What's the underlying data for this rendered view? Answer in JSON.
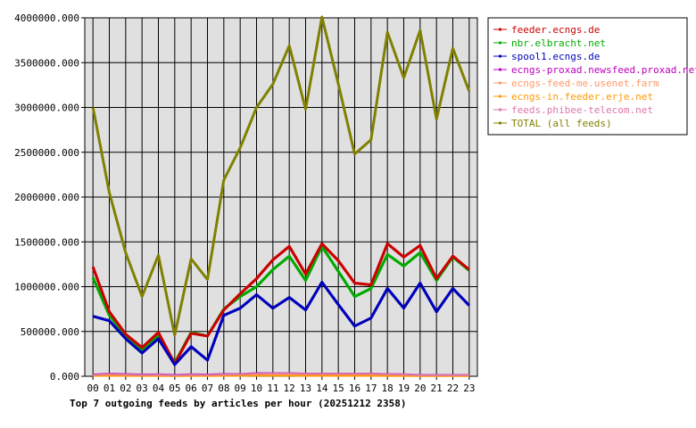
{
  "chart_data": {
    "type": "line",
    "title": "Top 7 outgoing feeds by articles per hour (20251212 2358)",
    "categories": [
      "00",
      "01",
      "02",
      "03",
      "04",
      "05",
      "06",
      "07",
      "08",
      "09",
      "10",
      "11",
      "12",
      "13",
      "14",
      "15",
      "16",
      "17",
      "18",
      "19",
      "20",
      "21",
      "22",
      "23"
    ],
    "y_tick_labels": [
      "0.000",
      "500000.000",
      "1000000.000",
      "1500000.000",
      "2000000.000",
      "2500000.000",
      "3000000.000",
      "3500000.000",
      "4000000.000"
    ],
    "ylim": [
      0,
      4000000
    ],
    "grid": true,
    "legend_position": "right",
    "plot_background": "#e0e0e0",
    "series": [
      {
        "name": "feeder.ecngs.de",
        "color": "#cc0000",
        "values": [
          1220000,
          720000,
          470000,
          320000,
          490000,
          140000,
          480000,
          450000,
          740000,
          920000,
          1090000,
          1300000,
          1450000,
          1140000,
          1480000,
          1290000,
          1040000,
          1020000,
          1480000,
          1330000,
          1460000,
          1090000,
          1340000,
          1190000
        ]
      },
      {
        "name": "nbr.elbracht.net",
        "color": "#00aa00",
        "values": [
          1100000,
          680000,
          450000,
          300000,
          460000,
          150000,
          490000,
          450000,
          750000,
          890000,
          1000000,
          1190000,
          1340000,
          1070000,
          1450000,
          1170000,
          890000,
          980000,
          1360000,
          1230000,
          1380000,
          1070000,
          1330000,
          1180000
        ]
      },
      {
        "name": "spool1.ecngs.de",
        "color": "#0000bb",
        "values": [
          670000,
          620000,
          420000,
          260000,
          420000,
          130000,
          330000,
          180000,
          680000,
          760000,
          910000,
          760000,
          880000,
          740000,
          1050000,
          800000,
          560000,
          650000,
          980000,
          760000,
          1040000,
          720000,
          980000,
          790000
        ]
      },
      {
        "name": "ecngs-proxad.newsfeed.proxad.net",
        "color": "#bb00bb",
        "values": [
          20000,
          30000,
          25000,
          20000,
          22000,
          15000,
          22000,
          20000,
          25000,
          25000,
          35000,
          35000,
          35000,
          30000,
          30000,
          30000,
          30000,
          30000,
          25000,
          22000,
          15000,
          15000,
          15000,
          15000
        ]
      },
      {
        "name": "ecngs-feed-me.usenet.farm",
        "color": "#ff9966",
        "values": [
          10000,
          10000,
          10000,
          8000,
          8000,
          5000,
          8000,
          8000,
          10000,
          10000,
          12000,
          12000,
          12000,
          10000,
          10000,
          10000,
          10000,
          10000,
          8000,
          8000,
          5000,
          5000,
          5000,
          5000
        ]
      },
      {
        "name": "ecngs-in.feeder.erje.net",
        "color": "#ff9900",
        "values": [
          5000,
          5000,
          5000,
          4000,
          4000,
          3000,
          4000,
          4000,
          5000,
          5000,
          6000,
          6000,
          6000,
          5000,
          5000,
          5000,
          5000,
          5000,
          4000,
          4000,
          3000,
          3000,
          3000,
          3000
        ]
      },
      {
        "name": "feeds.phibee-telecom.net",
        "color": "#dd77aa",
        "values": [
          15000,
          25000,
          20000,
          15000,
          18000,
          10000,
          18000,
          15000,
          20000,
          22000,
          30000,
          32000,
          32000,
          28000,
          28000,
          28000,
          28000,
          28000,
          22000,
          20000,
          12000,
          12000,
          12000,
          12000
        ]
      },
      {
        "name": "TOTAL (all feeds)",
        "color": "#808000",
        "values": [
          3000000,
          2050000,
          1380000,
          890000,
          1350000,
          460000,
          1310000,
          1080000,
          2190000,
          2550000,
          3000000,
          3260000,
          3690000,
          2980000,
          4010000,
          3260000,
          2480000,
          2640000,
          3840000,
          3330000,
          3860000,
          2870000,
          3660000,
          3180000
        ]
      }
    ]
  }
}
